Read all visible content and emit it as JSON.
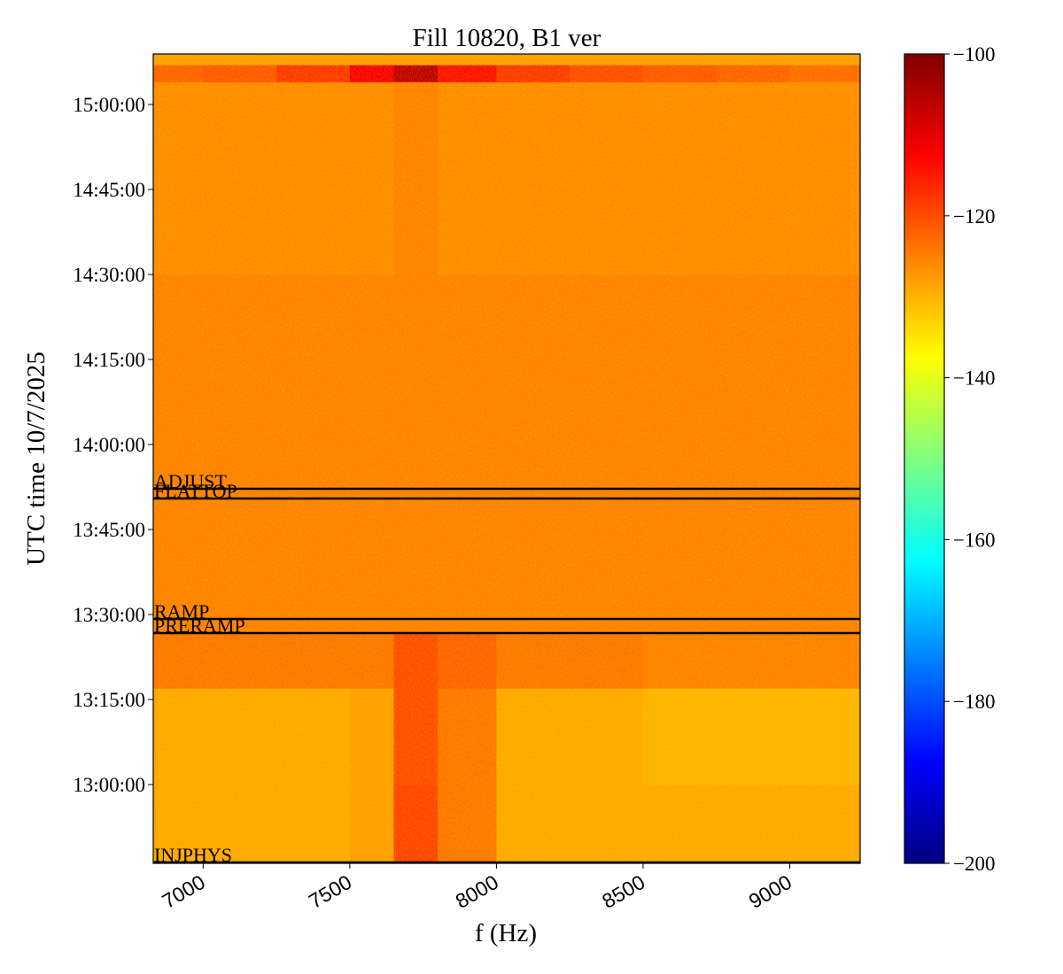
{
  "chart_data": {
    "type": "heatmap",
    "title": "Fill 10820, B1 ver",
    "xlabel": "f (Hz)",
    "ylabel": "UTC time 10/7/2025",
    "xlim": [
      6830,
      9240
    ],
    "xticks": [
      7000,
      7500,
      8000,
      8500,
      9000
    ],
    "ylim": [
      "12:46:06",
      "15:08:54"
    ],
    "yticks": [
      "13:00:00",
      "13:15:00",
      "13:30:00",
      "13:45:00",
      "14:00:00",
      "14:15:00",
      "14:30:00",
      "14:45:00",
      "15:00:00"
    ],
    "xbins": [
      6830,
      7000,
      7250,
      7500,
      7650,
      7800,
      8000,
      8250,
      8500,
      8750,
      9000,
      9240
    ],
    "ybins": [
      "12:46:06",
      "13:00:00",
      "13:17:00",
      "13:27:00",
      "14:00:00",
      "14:30:00",
      "15:04:00",
      "15:07:00",
      "15:08:54"
    ],
    "values": [
      [
        -129,
        -129,
        -129,
        -128,
        -119,
        -124,
        -129,
        -129,
        -129,
        -129,
        -129
      ],
      [
        -129,
        -129,
        -129,
        -128,
        -120,
        -124,
        -129,
        -129,
        -130,
        -130,
        -130
      ],
      [
        -124,
        -124,
        -124,
        -124,
        -120,
        -122,
        -124,
        -124,
        -125,
        -125,
        -125
      ],
      [
        -125,
        -125,
        -125,
        -125,
        -125,
        -125,
        -125,
        -125,
        -125,
        -125,
        -125
      ],
      [
        -125,
        -125,
        -125,
        -125,
        -125,
        -125,
        -125,
        -125,
        -125,
        -125,
        -125
      ],
      [
        -126,
        -126,
        -126,
        -126,
        -125,
        -126,
        -126,
        -126,
        -126,
        -126,
        -126
      ],
      [
        -122,
        -121,
        -118,
        -112,
        -106,
        -114,
        -118,
        -120,
        -121,
        -122,
        -123
      ],
      [
        -128,
        -128,
        -128,
        -128,
        -128,
        -128,
        -128,
        -128,
        -128,
        -128,
        -128
      ]
    ],
    "colormap": "jet",
    "clim": [
      -200,
      -100
    ],
    "cticks": [
      {
        "value": -200,
        "label": "−200"
      },
      {
        "value": -180,
        "label": "−180"
      },
      {
        "value": -160,
        "label": "−160"
      },
      {
        "value": -140,
        "label": "−140"
      },
      {
        "value": -120,
        "label": "−120"
      },
      {
        "value": -100,
        "label": "−100"
      }
    ],
    "events": [
      {
        "label": "ADJUST",
        "time": "13:52:11"
      },
      {
        "label": "FLATTOP",
        "time": "13:50:28"
      },
      {
        "label": "RAMP",
        "time": "13:29:13"
      },
      {
        "label": "PRERAMP",
        "time": "13:26:43"
      },
      {
        "label": "INJPHYS",
        "time": "12:46:15"
      }
    ]
  }
}
